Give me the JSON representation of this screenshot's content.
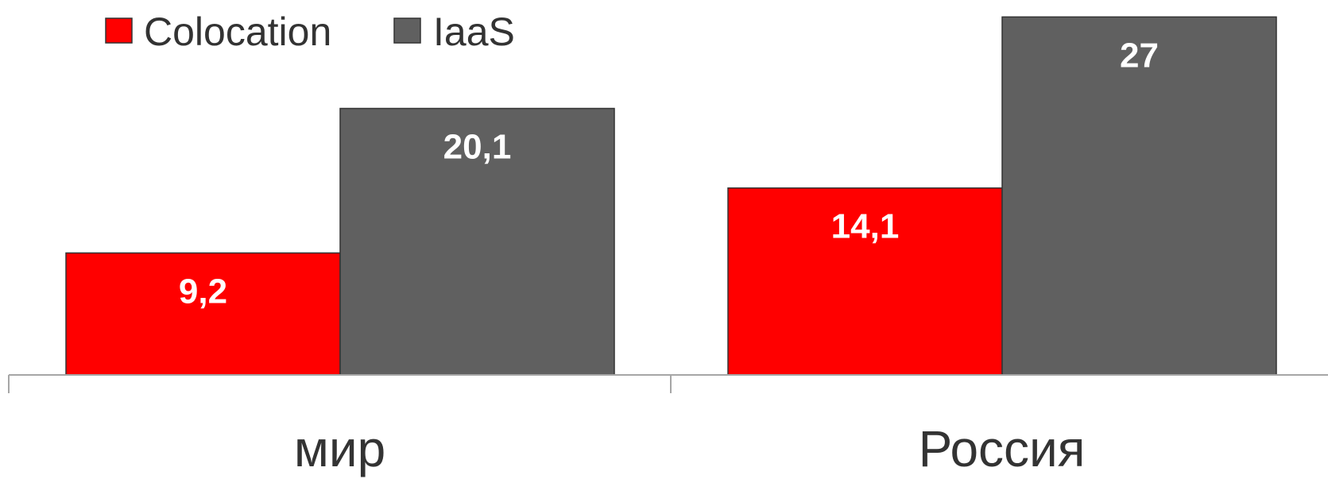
{
  "chart_data": {
    "type": "bar",
    "categories": [
      "мир",
      "Россия"
    ],
    "series": [
      {
        "name": "Colocation",
        "values": [
          9.2,
          14.1
        ],
        "labels": [
          "9,2",
          "14,1"
        ],
        "color": "#ff0000"
      },
      {
        "name": "IaaS",
        "values": [
          20.1,
          27
        ],
        "labels": [
          "20,1",
          "27"
        ],
        "color": "#606060"
      }
    ],
    "title": "",
    "xlabel": "",
    "ylabel": "",
    "ylim": [
      0,
      27.2
    ],
    "grid": false,
    "legend": "top-left"
  }
}
